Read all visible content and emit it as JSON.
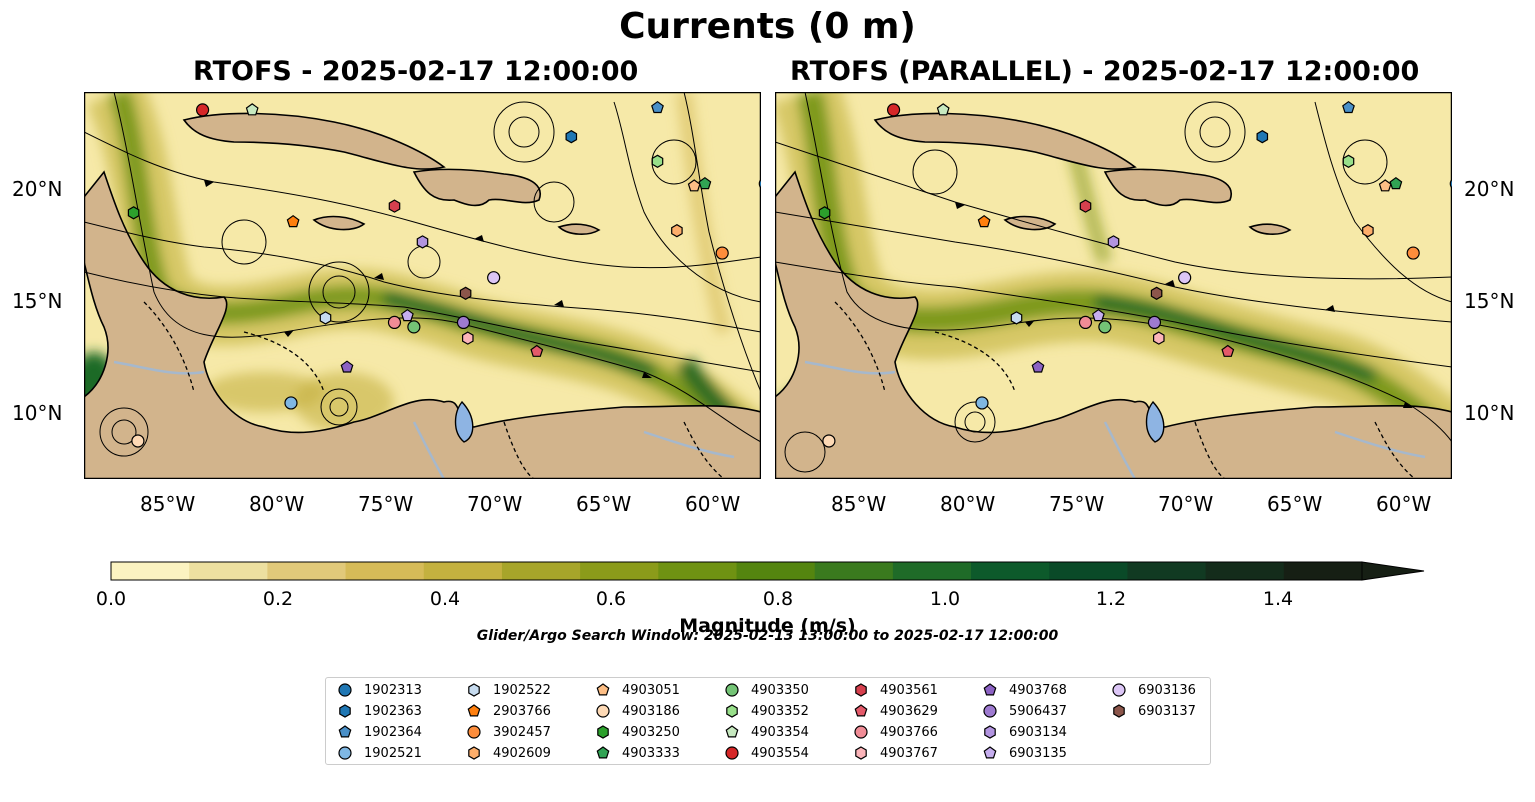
{
  "figure": {
    "title": "Currents (0 m)",
    "left_panel_title": "RTOFS - 2025-02-17 12:00:00",
    "right_panel_title": "RTOFS (PARALLEL) - 2025-02-17 12:00:00"
  },
  "axes": {
    "lon_ticks": [
      "85°W",
      "80°W",
      "75°W",
      "70°W",
      "65°W",
      "60°W"
    ],
    "lat_ticks": [
      "20°N",
      "15°N",
      "10°N"
    ]
  },
  "colorbar": {
    "label": "Magnitude (m/s)",
    "ticks": [
      "0.0",
      "0.2",
      "0.4",
      "0.6",
      "0.8",
      "1.0",
      "1.2",
      "1.4"
    ],
    "colors": [
      "#fbf3c1",
      "#ede0a0",
      "#e1c97a",
      "#d6bb58",
      "#c4b13f",
      "#a7a52a",
      "#8b9b1a",
      "#6f9212",
      "#54850f",
      "#3a7a1e",
      "#1f6b28",
      "#0d5a2b",
      "#0a4a28",
      "#113a22",
      "#142c1b",
      "#161f14"
    ]
  },
  "search_window": "Glider/Argo Search Window: 2025-02-13 13:00:00 to 2025-02-17 12:00:00",
  "colors": {
    "land": "#d2b48c",
    "lake": "#8eb4e3",
    "river": "#a6b8cc",
    "ocean_base": "#f6e9a8"
  },
  "legend": [
    {
      "id": "1902313",
      "shape": "circle",
      "color": "#1f77b4"
    },
    {
      "id": "1902363",
      "shape": "hexagon",
      "color": "#1f77b4"
    },
    {
      "id": "1902364",
      "shape": "pentagon",
      "color": "#4a90c8"
    },
    {
      "id": "1902521",
      "shape": "circle",
      "color": "#7fb7e3"
    },
    {
      "id": "1902522",
      "shape": "hexagon",
      "color": "#c6dbef"
    },
    {
      "id": "2903766",
      "shape": "pentagon",
      "color": "#ff7f0e"
    },
    {
      "id": "3902457",
      "shape": "circle",
      "color": "#fd8d3c"
    },
    {
      "id": "4902609",
      "shape": "hexagon",
      "color": "#fdae6b"
    },
    {
      "id": "4903051",
      "shape": "pentagon",
      "color": "#fdbe85"
    },
    {
      "id": "4903186",
      "shape": "circle",
      "color": "#fdd9b5"
    },
    {
      "id": "4903250",
      "shape": "hexagon",
      "color": "#2ca02c"
    },
    {
      "id": "4903333",
      "shape": "pentagon",
      "color": "#31a354"
    },
    {
      "id": "4903350",
      "shape": "circle",
      "color": "#74c476"
    },
    {
      "id": "4903352",
      "shape": "hexagon",
      "color": "#98df8a"
    },
    {
      "id": "4903354",
      "shape": "pentagon",
      "color": "#c7e9c0"
    },
    {
      "id": "4903554",
      "shape": "circle",
      "color": "#d62728"
    },
    {
      "id": "4903561",
      "shape": "hexagon",
      "color": "#d6404e"
    },
    {
      "id": "4903629",
      "shape": "pentagon",
      "color": "#e45a6a"
    },
    {
      "id": "4903766",
      "shape": "circle",
      "color": "#f08c96"
    },
    {
      "id": "4903767",
      "shape": "hexagon",
      "color": "#fbb4b9"
    },
    {
      "id": "4903768",
      "shape": "pentagon",
      "color": "#8c62c4"
    },
    {
      "id": "5906437",
      "shape": "circle",
      "color": "#9e7ad0"
    },
    {
      "id": "6903134",
      "shape": "hexagon",
      "color": "#b294e0"
    },
    {
      "id": "6903135",
      "shape": "pentagon",
      "color": "#c6aeee"
    },
    {
      "id": "6903136",
      "shape": "circle",
      "color": "#dcc6f6"
    },
    {
      "id": "6903137",
      "shape": "hexagon",
      "color": "#8c564b"
    }
  ],
  "markers_left": [
    {
      "id": "4903554",
      "lon": -84.1,
      "lat": 23.5
    },
    {
      "id": "4903354",
      "lon": -81.8,
      "lat": 23.5
    },
    {
      "id": "1902364",
      "lon": -63.0,
      "lat": 23.6
    },
    {
      "id": "1902363",
      "lon": -67.0,
      "lat": 22.3
    },
    {
      "id": "4903352",
      "lon": -63.0,
      "lat": 21.2
    },
    {
      "id": "4903051",
      "lon": -61.3,
      "lat": 20.1
    },
    {
      "id": "4903333",
      "lon": -60.8,
      "lat": 20.2
    },
    {
      "id": "1902313",
      "lon": -58.0,
      "lat": 20.2
    },
    {
      "id": "4903250",
      "lon": -87.3,
      "lat": 18.9
    },
    {
      "id": "4903561",
      "lon": -75.2,
      "lat": 19.2
    },
    {
      "id": "2903766",
      "lon": -79.9,
      "lat": 18.5
    },
    {
      "id": "4902609",
      "lon": -62.1,
      "lat": 18.1
    },
    {
      "id": "6903134",
      "lon": -73.9,
      "lat": 17.6
    },
    {
      "id": "3902457",
      "lon": -60.0,
      "lat": 17.1
    },
    {
      "id": "6903136",
      "lon": -70.6,
      "lat": 16.0
    },
    {
      "id": "6903137",
      "lon": -71.9,
      "lat": 15.3
    },
    {
      "id": "1902522",
      "lon": -78.4,
      "lat": 14.2
    },
    {
      "id": "6903135",
      "lon": -74.6,
      "lat": 14.3
    },
    {
      "id": "4903766",
      "lon": -75.2,
      "lat": 14.0
    },
    {
      "id": "4903350",
      "lon": -74.3,
      "lat": 13.8
    },
    {
      "id": "5906437",
      "lon": -72.0,
      "lat": 14.0
    },
    {
      "id": "4903767",
      "lon": -71.8,
      "lat": 13.3
    },
    {
      "id": "4903629",
      "lon": -68.6,
      "lat": 12.7
    },
    {
      "id": "4903768",
      "lon": -77.4,
      "lat": 12.0
    },
    {
      "id": "1902521",
      "lon": -80.0,
      "lat": 10.4
    },
    {
      "id": "4903186",
      "lon": -87.1,
      "lat": 8.7
    }
  ],
  "markers_right": [
    {
      "id": "4903554",
      "lon": -84.1,
      "lat": 23.5
    },
    {
      "id": "4903354",
      "lon": -81.8,
      "lat": 23.5
    },
    {
      "id": "1902364",
      "lon": -63.0,
      "lat": 23.6
    },
    {
      "id": "1902363",
      "lon": -67.0,
      "lat": 22.3
    },
    {
      "id": "4903352",
      "lon": -63.0,
      "lat": 21.2
    },
    {
      "id": "4903051",
      "lon": -61.3,
      "lat": 20.1
    },
    {
      "id": "4903333",
      "lon": -60.8,
      "lat": 20.2
    },
    {
      "id": "1902313",
      "lon": -58.0,
      "lat": 20.2
    },
    {
      "id": "4903250",
      "lon": -87.3,
      "lat": 18.9
    },
    {
      "id": "4903561",
      "lon": -75.2,
      "lat": 19.2
    },
    {
      "id": "2903766",
      "lon": -79.9,
      "lat": 18.5
    },
    {
      "id": "4902609",
      "lon": -62.1,
      "lat": 18.1
    },
    {
      "id": "6903134",
      "lon": -73.9,
      "lat": 17.6
    },
    {
      "id": "3902457",
      "lon": -60.0,
      "lat": 17.1
    },
    {
      "id": "6903136",
      "lon": -70.6,
      "lat": 16.0
    },
    {
      "id": "6903137",
      "lon": -71.9,
      "lat": 15.3
    },
    {
      "id": "1902522",
      "lon": -78.4,
      "lat": 14.2
    },
    {
      "id": "6903135",
      "lon": -74.6,
      "lat": 14.3
    },
    {
      "id": "4903766",
      "lon": -75.2,
      "lat": 14.0
    },
    {
      "id": "4903350",
      "lon": -74.3,
      "lat": 13.8
    },
    {
      "id": "5906437",
      "lon": -72.0,
      "lat": 14.0
    },
    {
      "id": "4903767",
      "lon": -71.8,
      "lat": 13.3
    },
    {
      "id": "4903629",
      "lon": -68.6,
      "lat": 12.7
    },
    {
      "id": "4903768",
      "lon": -77.4,
      "lat": 12.0
    },
    {
      "id": "1902521",
      "lon": -80.0,
      "lat": 10.4
    },
    {
      "id": "4903186",
      "lon": -87.1,
      "lat": 8.7
    }
  ]
}
